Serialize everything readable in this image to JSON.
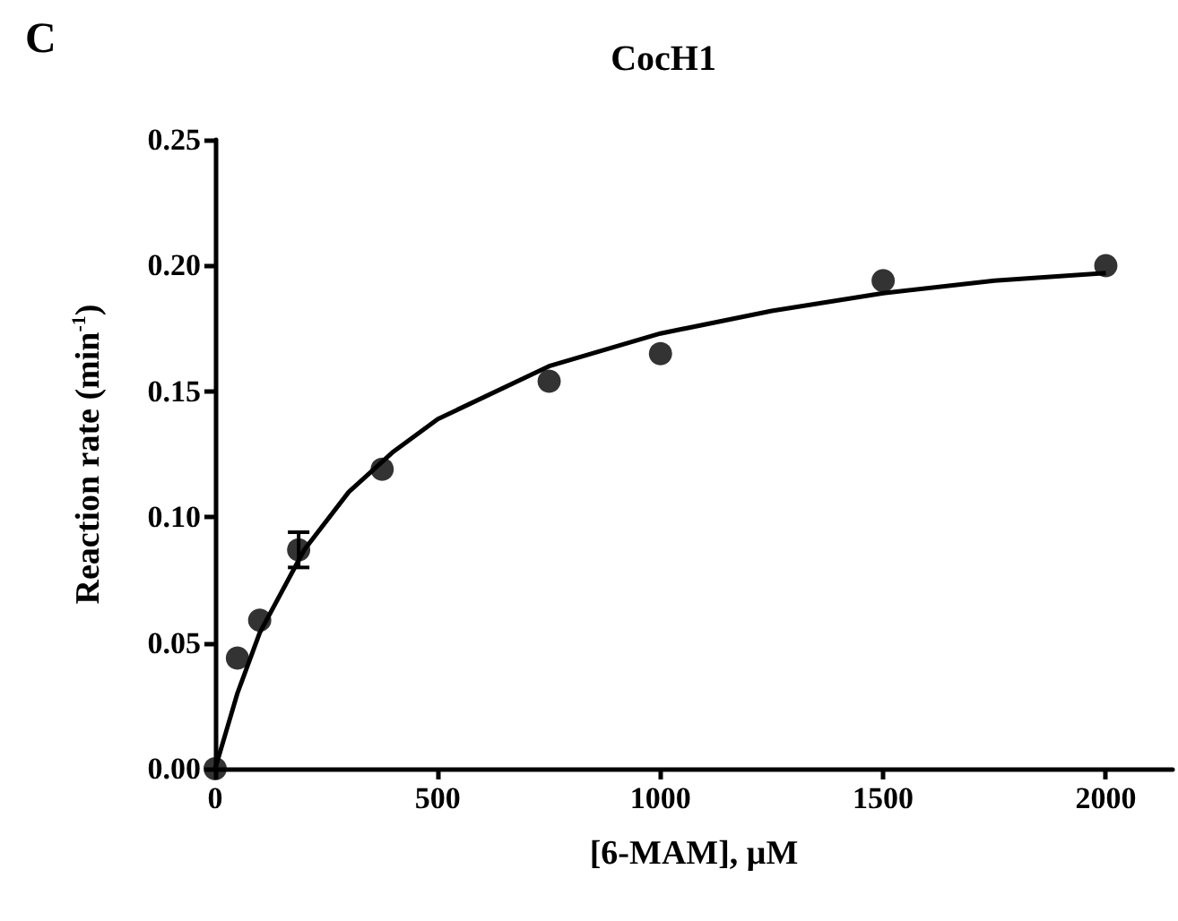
{
  "chart_data": {
    "type": "scatter",
    "title": "CocH1",
    "xlabel": "[6-MAM], μM",
    "ylabel": "Reaction rate (min$^{-1}$)",
    "annotations": [
      "C"
    ],
    "xlim": [
      0,
      2150
    ],
    "xticks": [
      0,
      500,
      1000,
      1500,
      2000
    ],
    "ylim": [
      0,
      0.25
    ],
    "yticks": [
      {
        "value": 0,
        "label": "0.00"
      },
      {
        "value": 0.05,
        "label": "0.05"
      },
      {
        "value": 0.1,
        "label": "0.10"
      },
      {
        "value": 0.15,
        "label": "0.15"
      },
      {
        "value": 0.2,
        "label": "0.20"
      },
      {
        "value": 0.25,
        "label": "0.25"
      }
    ],
    "grid": false,
    "marker": "circle",
    "series": [
      {
        "color": "#000000",
        "x": [
          0,
          50,
          100,
          187.5,
          375,
          750,
          1000,
          1500,
          2000
        ],
        "values": [
          0,
          0.044,
          0.059,
          0.087,
          0.119,
          0.154,
          0.165,
          0.194,
          0.2
        ],
        "errors": [
          null,
          null,
          null,
          0.007,
          null,
          null,
          null,
          null,
          null
        ]
      },
      {
        "type": "line",
        "color": "#000000",
        "marker": "none",
        "line_style": "solid",
        "x": [
          0,
          50,
          100,
          200,
          300,
          400,
          500,
          750,
          1000,
          1250,
          1500,
          1750,
          2000
        ],
        "values": [
          0,
          0.03,
          0.054,
          0.087,
          0.11,
          0.126,
          0.139,
          0.16,
          0.173,
          0.182,
          0.189,
          0.194,
          0.197
        ]
      }
    ]
  }
}
